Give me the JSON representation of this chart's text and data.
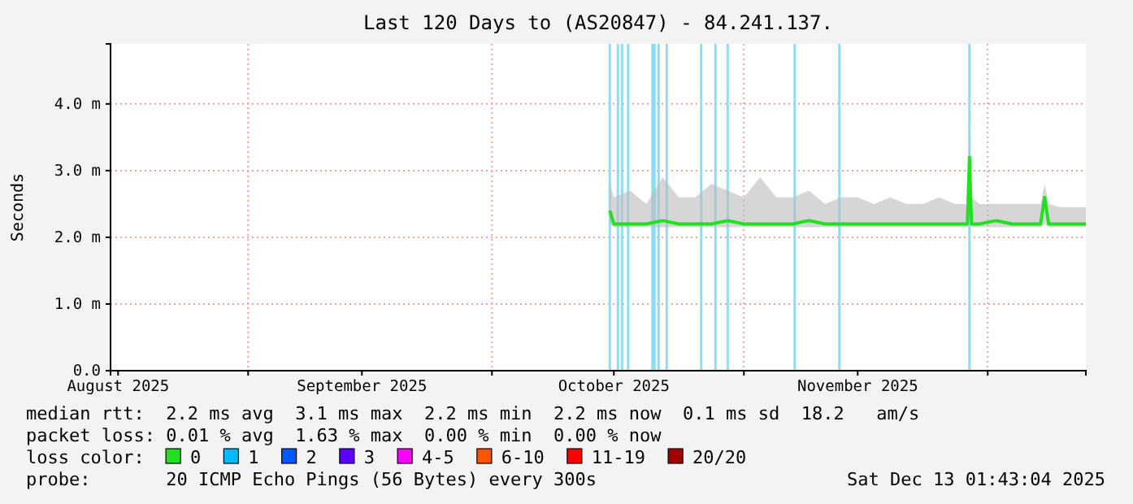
{
  "chart_data": {
    "type": "line",
    "title": "Last 120 Days to (AS20847) - 84.241.137.",
    "ylabel": "Seconds",
    "xlim": [
      "2025-08-15T01:43",
      "2025-12-13T01:43"
    ],
    "xticks": [
      {
        "value": "2025-08-16",
        "label": "August 2025"
      },
      {
        "value": "2025-09-15",
        "label": "September 2025"
      },
      {
        "value": "2025-10-16",
        "label": "October 2025"
      },
      {
        "value": "2025-11-15",
        "label": "November 2025"
      },
      {
        "value": "2025-09-01",
        "label": null
      },
      {
        "value": "2025-10-01",
        "label": null
      },
      {
        "value": "2025-11-01",
        "label": null
      },
      {
        "value": "2025-12-01",
        "label": null
      }
    ],
    "ylim": [
      0,
      4.9
    ],
    "yticks": [
      {
        "value": 0,
        "label": "0.0"
      },
      {
        "value": 1,
        "label": "1.0 m"
      },
      {
        "value": 2,
        "label": "2.0 m"
      },
      {
        "value": 3,
        "label": "3.0 m"
      },
      {
        "value": 4,
        "label": "4.0 m"
      }
    ],
    "grid": true,
    "legend": "bottom",
    "legend_title": "loss color:",
    "line_style": "solid",
    "marker": "none",
    "x": [
      "2025-10-15T12:00",
      "2025-10-16",
      "2025-10-18",
      "2025-10-20",
      "2025-10-22",
      "2025-10-24",
      "2025-10-26",
      "2025-10-28",
      "2025-10-30",
      "2025-11-01",
      "2025-11-03",
      "2025-11-05",
      "2025-11-07",
      "2025-11-09",
      "2025-11-11",
      "2025-11-13",
      "2025-11-15",
      "2025-11-17",
      "2025-11-19",
      "2025-11-21",
      "2025-11-23",
      "2025-11-25",
      "2025-11-27",
      "2025-11-28T12:00",
      "2025-11-28T18:00",
      "2025-11-29",
      "2025-11-30",
      "2025-12-02",
      "2025-12-04",
      "2025-12-06",
      "2025-12-07T12:00",
      "2025-12-08",
      "2025-12-08T12:00",
      "2025-12-10",
      "2025-12-12",
      "2025-12-13T01:43"
    ],
    "series": [
      {
        "name": "0",
        "color": "#20e020",
        "values": [
          2.4,
          2.2,
          2.2,
          2.2,
          2.25,
          2.2,
          2.2,
          2.2,
          2.25,
          2.2,
          2.2,
          2.2,
          2.2,
          2.25,
          2.2,
          2.2,
          2.2,
          2.2,
          2.2,
          2.2,
          2.2,
          2.2,
          2.2,
          2.2,
          3.2,
          2.2,
          2.2,
          2.25,
          2.2,
          2.2,
          2.2,
          2.6,
          2.2,
          2.2,
          2.2,
          2.2
        ],
        "lower": [
          2.2,
          2.15,
          2.15,
          2.15,
          2.15,
          2.15,
          2.15,
          2.15,
          2.15,
          2.15,
          2.15,
          2.15,
          2.15,
          2.15,
          2.15,
          2.15,
          2.15,
          2.15,
          2.15,
          2.15,
          2.15,
          2.15,
          2.15,
          2.15,
          2.3,
          2.15,
          2.15,
          2.15,
          2.15,
          2.15,
          2.15,
          2.2,
          2.15,
          2.15,
          2.15,
          2.15
        ],
        "upper": [
          2.8,
          2.6,
          2.7,
          2.5,
          2.9,
          2.6,
          2.6,
          2.8,
          2.7,
          2.6,
          2.9,
          2.6,
          2.6,
          2.7,
          2.5,
          2.6,
          2.6,
          2.5,
          2.6,
          2.5,
          2.5,
          2.6,
          2.5,
          2.5,
          3.7,
          2.6,
          2.5,
          2.5,
          2.5,
          2.5,
          2.5,
          2.8,
          2.5,
          2.45,
          2.45,
          2.45
        ]
      },
      {
        "name": "1",
        "color": "#00bbff",
        "values": [
          null,
          null,
          null,
          null,
          null,
          null,
          null,
          null,
          null,
          null,
          null,
          null,
          null,
          null,
          null,
          null,
          null,
          null,
          null,
          null,
          null,
          null,
          null,
          null,
          null,
          null,
          null,
          null,
          null,
          null,
          null,
          null,
          null,
          null,
          null,
          null
        ]
      },
      {
        "name": "2",
        "color": "#0059ff",
        "values": [
          null,
          null,
          null,
          null,
          null,
          null,
          null,
          null,
          null,
          null,
          null,
          null,
          null,
          null,
          null,
          null,
          null,
          null,
          null,
          null,
          null,
          null,
          null,
          null,
          null,
          null,
          null,
          null,
          null,
          null,
          null,
          null,
          null,
          null,
          null,
          null
        ]
      },
      {
        "name": "3",
        "color": "#5e00ff",
        "values": [
          null,
          null,
          null,
          null,
          null,
          null,
          null,
          null,
          null,
          null,
          null,
          null,
          null,
          null,
          null,
          null,
          null,
          null,
          null,
          null,
          null,
          null,
          null,
          null,
          null,
          null,
          null,
          null,
          null,
          null,
          null,
          null,
          null,
          null,
          null,
          null
        ]
      },
      {
        "name": "4-5",
        "color": "#ff00ff",
        "values": [
          null,
          null,
          null,
          null,
          null,
          null,
          null,
          null,
          null,
          null,
          null,
          null,
          null,
          null,
          null,
          null,
          null,
          null,
          null,
          null,
          null,
          null,
          null,
          null,
          null,
          null,
          null,
          null,
          null,
          null,
          null,
          null,
          null,
          null,
          null,
          null
        ]
      },
      {
        "name": "6-10",
        "color": "#ff5500",
        "values": [
          null,
          null,
          null,
          null,
          null,
          null,
          null,
          null,
          null,
          null,
          null,
          null,
          null,
          null,
          null,
          null,
          null,
          null,
          null,
          null,
          null,
          null,
          null,
          null,
          null,
          null,
          null,
          null,
          null,
          null,
          null,
          null,
          null,
          null,
          null,
          null
        ]
      },
      {
        "name": "11-19",
        "color": "#ff0000",
        "values": [
          null,
          null,
          null,
          null,
          null,
          null,
          null,
          null,
          null,
          null,
          null,
          null,
          null,
          null,
          null,
          null,
          null,
          null,
          null,
          null,
          null,
          null,
          null,
          null,
          null,
          null,
          null,
          null,
          null,
          null,
          null,
          null,
          null,
          null,
          null,
          null
        ]
      },
      {
        "name": "20/20",
        "color": "#a10000",
        "values": [
          null,
          null,
          null,
          null,
          null,
          null,
          null,
          null,
          null,
          null,
          null,
          null,
          null,
          null,
          null,
          null,
          null,
          null,
          null,
          null,
          null,
          null,
          null,
          null,
          null,
          null,
          null,
          null,
          null,
          null,
          null,
          null,
          null,
          null,
          null,
          null
        ]
      }
    ],
    "ref_lines": [
      {
        "axis": "x",
        "value": "2025-10-15T12:00",
        "color": "#8fdcf5"
      },
      {
        "axis": "x",
        "value": "2025-10-16T12:00",
        "color": "#8fdcf5"
      },
      {
        "axis": "x",
        "value": "2025-10-17",
        "color": "#8fdcf5"
      },
      {
        "axis": "x",
        "value": "2025-10-17T18:00",
        "color": "#8fdcf5"
      },
      {
        "axis": "x",
        "value": "2025-10-20T18:00",
        "color": "#8fdcf5"
      },
      {
        "axis": "x",
        "value": "2025-10-21",
        "color": "#8fdcf5"
      },
      {
        "axis": "x",
        "value": "2025-10-21T12:00",
        "color": "#8fdcf5"
      },
      {
        "axis": "x",
        "value": "2025-10-22T12:00",
        "color": "#8fdcf5"
      },
      {
        "axis": "x",
        "value": "2025-10-26T18:00",
        "color": "#8fdcf5"
      },
      {
        "axis": "x",
        "value": "2025-10-28T12:00",
        "color": "#8fdcf5"
      },
      {
        "axis": "x",
        "value": "2025-10-30",
        "color": "#8fdcf5"
      },
      {
        "axis": "x",
        "value": "2025-11-07T06:00",
        "color": "#8fdcf5"
      },
      {
        "axis": "x",
        "value": "2025-11-12T18:00",
        "color": "#8fdcf5"
      },
      {
        "axis": "x",
        "value": "2025-11-28T18:00",
        "color": "#8fdcf5"
      }
    ],
    "annotations": [
      "median rtt:  2.2 ms avg  3.1 ms max  2.2 ms min  2.2 ms now  0.1 ms sd  18.2   am/s",
      "packet loss: 0.01 % avg  1.63 % max  0.00 % min  0.00 % now",
      "probe:       20 ICMP Echo Pings (56 Bytes) every 300s",
      "Sat Dec 13 01:43:04 2025"
    ]
  }
}
